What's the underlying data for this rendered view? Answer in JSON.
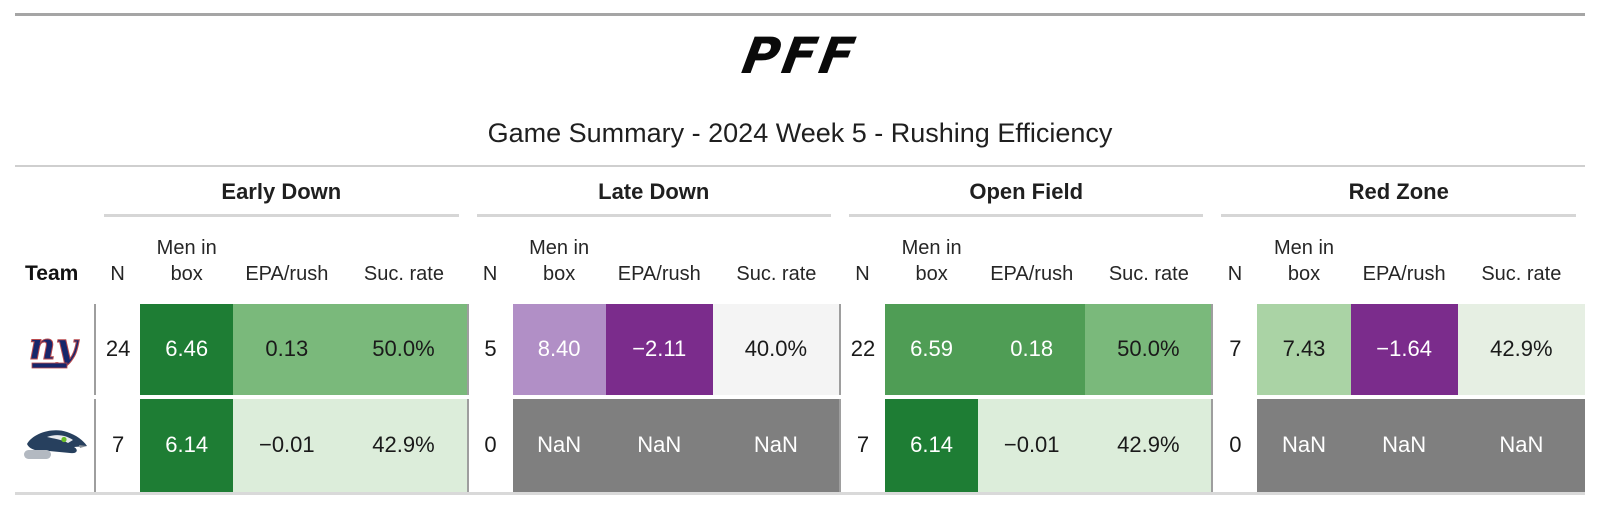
{
  "page": {
    "logo_text": "PFF",
    "title": "Game Summary - 2024 Week 5 - Rushing Efficiency"
  },
  "colors": {
    "dark_green": "#1e7d34",
    "medium_green": "#7ab97b",
    "open_field_green": "#4f9d55",
    "light_green": "#aad3a5",
    "pale_green": "#dcedda",
    "pale_green_gray": "#e6efe3",
    "light_purple": "#b18fc6",
    "dark_purple": "#7b2c8c",
    "nan_gray": "#7f7f7f",
    "near_white": "#f4f4f4",
    "rule_gray": "#cfcfcf",
    "text_dark": "#1a1a1a",
    "text_white": "#ffffff"
  },
  "table": {
    "team_header": "Team",
    "groups": [
      {
        "id": "early-down",
        "label": "Early Down"
      },
      {
        "id": "late-down",
        "label": "Late Down"
      },
      {
        "id": "open-field",
        "label": "Open Field"
      },
      {
        "id": "red-zone",
        "label": "Red Zone"
      }
    ],
    "sub_headers": {
      "n": "N",
      "box_line1": "Men in",
      "box_line2": "box",
      "epa": "EPA/rush",
      "suc": "Suc. rate"
    },
    "rows": [
      {
        "team_name": "New York Giants",
        "logo": "giants",
        "groups": [
          {
            "n": "24",
            "cells": [
              {
                "key": "men-in-box",
                "value": "6.46",
                "bg": "#1e7d34",
                "fg": "#ffffff"
              },
              {
                "key": "epa-per-rush",
                "value": "0.13",
                "bg": "#7ab97b",
                "fg": "#1a1a1a"
              },
              {
                "key": "success-rate",
                "value": "50.0%",
                "bg": "#7ab97b",
                "fg": "#1a1a1a"
              }
            ]
          },
          {
            "n": "5",
            "cells": [
              {
                "key": "men-in-box",
                "value": "8.40",
                "bg": "#b18fc6",
                "fg": "#ffffff"
              },
              {
                "key": "epa-per-rush",
                "value": "−2.11",
                "bg": "#7b2c8c",
                "fg": "#ffffff"
              },
              {
                "key": "success-rate",
                "value": "40.0%",
                "bg": "#f4f4f4",
                "fg": "#1a1a1a"
              }
            ]
          },
          {
            "n": "22",
            "cells": [
              {
                "key": "men-in-box",
                "value": "6.59",
                "bg": "#4f9d55",
                "fg": "#ffffff"
              },
              {
                "key": "epa-per-rush",
                "value": "0.18",
                "bg": "#4f9d55",
                "fg": "#ffffff"
              },
              {
                "key": "success-rate",
                "value": "50.0%",
                "bg": "#7ab97b",
                "fg": "#1a1a1a"
              }
            ]
          },
          {
            "n": "7",
            "cells": [
              {
                "key": "men-in-box",
                "value": "7.43",
                "bg": "#aad3a5",
                "fg": "#1a1a1a"
              },
              {
                "key": "epa-per-rush",
                "value": "−1.64",
                "bg": "#7b2c8c",
                "fg": "#ffffff"
              },
              {
                "key": "success-rate",
                "value": "42.9%",
                "bg": "#e6efe3",
                "fg": "#1a1a1a"
              }
            ]
          }
        ]
      },
      {
        "team_name": "Seattle Seahawks",
        "logo": "seahawks",
        "groups": [
          {
            "n": "7",
            "cells": [
              {
                "key": "men-in-box",
                "value": "6.14",
                "bg": "#1e7d34",
                "fg": "#ffffff"
              },
              {
                "key": "epa-per-rush",
                "value": "−0.01",
                "bg": "#dcedda",
                "fg": "#1a1a1a"
              },
              {
                "key": "success-rate",
                "value": "42.9%",
                "bg": "#dcedda",
                "fg": "#1a1a1a"
              }
            ]
          },
          {
            "n": "0",
            "cells": [
              {
                "key": "men-in-box",
                "value": "NaN",
                "bg": "#7f7f7f",
                "fg": "#ffffff"
              },
              {
                "key": "epa-per-rush",
                "value": "NaN",
                "bg": "#7f7f7f",
                "fg": "#ffffff"
              },
              {
                "key": "success-rate",
                "value": "NaN",
                "bg": "#7f7f7f",
                "fg": "#ffffff"
              }
            ]
          },
          {
            "n": "7",
            "cells": [
              {
                "key": "men-in-box",
                "value": "6.14",
                "bg": "#1e7d34",
                "fg": "#ffffff"
              },
              {
                "key": "epa-per-rush",
                "value": "−0.01",
                "bg": "#dcedda",
                "fg": "#1a1a1a"
              },
              {
                "key": "success-rate",
                "value": "42.9%",
                "bg": "#dcedda",
                "fg": "#1a1a1a"
              }
            ]
          },
          {
            "n": "0",
            "cells": [
              {
                "key": "men-in-box",
                "value": "NaN",
                "bg": "#7f7f7f",
                "fg": "#ffffff"
              },
              {
                "key": "epa-per-rush",
                "value": "NaN",
                "bg": "#7f7f7f",
                "fg": "#ffffff"
              },
              {
                "key": "success-rate",
                "value": "NaN",
                "bg": "#7f7f7f",
                "fg": "#ffffff"
              }
            ]
          }
        ]
      }
    ]
  },
  "chart_data": {
    "type": "table",
    "title": "Game Summary - 2024 Week 5 - Rushing Efficiency",
    "column_groups": [
      "Early Down",
      "Late Down",
      "Open Field",
      "Red Zone"
    ],
    "columns_per_group": [
      "N",
      "Men in box",
      "EPA/rush",
      "Suc. rate"
    ],
    "rows": [
      {
        "team": "New York Giants",
        "early_down": {
          "n": 24,
          "men_in_box": 6.46,
          "epa_per_rush": 0.13,
          "success_rate_pct": 50.0
        },
        "late_down": {
          "n": 5,
          "men_in_box": 8.4,
          "epa_per_rush": -2.11,
          "success_rate_pct": 40.0
        },
        "open_field": {
          "n": 22,
          "men_in_box": 6.59,
          "epa_per_rush": 0.18,
          "success_rate_pct": 50.0
        },
        "red_zone": {
          "n": 7,
          "men_in_box": 7.43,
          "epa_per_rush": -1.64,
          "success_rate_pct": 42.9
        }
      },
      {
        "team": "Seattle Seahawks",
        "early_down": {
          "n": 7,
          "men_in_box": 6.14,
          "epa_per_rush": -0.01,
          "success_rate_pct": 42.9
        },
        "late_down": {
          "n": 0,
          "men_in_box": "NaN",
          "epa_per_rush": "NaN",
          "success_rate_pct": "NaN"
        },
        "open_field": {
          "n": 7,
          "men_in_box": 6.14,
          "epa_per_rush": -0.01,
          "success_rate_pct": 42.9
        },
        "red_zone": {
          "n": 0,
          "men_in_box": "NaN",
          "epa_per_rush": "NaN",
          "success_rate_pct": "NaN"
        }
      }
    ]
  }
}
